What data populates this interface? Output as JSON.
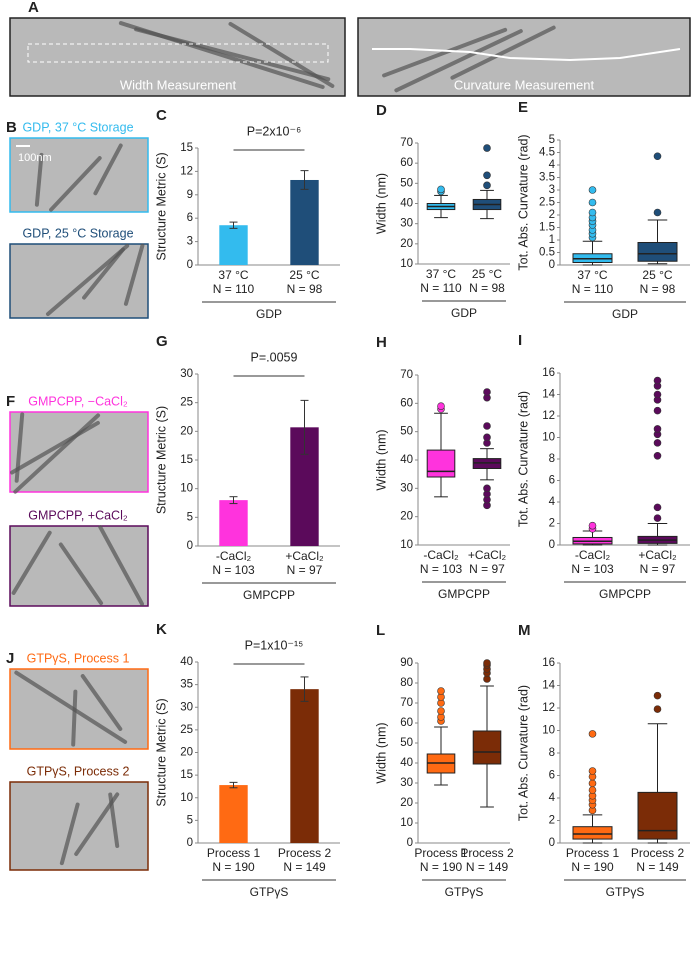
{
  "images": [
    {
      "label": "A",
      "captions": [
        "Width Measurement",
        "Curvature Measurement"
      ]
    },
    {
      "label": "B",
      "captions": [
        "GDP, 37 °C Storage",
        "GDP,  25 °C Storage"
      ],
      "scale_label": "100nm"
    },
    {
      "label": "F",
      "captions": [
        "GMPCPP, −CaCl₂",
        "GMPCPP, +CaCl₂"
      ]
    },
    {
      "label": "J",
      "captions": [
        "GTPγS, Process 1",
        "GTPγS, Process 2"
      ]
    }
  ],
  "chart_data": [
    {
      "type": "bar",
      "label": "C",
      "ylabel": "Structure Metric (S)",
      "categories": [
        "37 °C",
        "25 °C"
      ],
      "n_labels": [
        "N = 110",
        "N = 98"
      ],
      "group_label": "GDP",
      "values": [
        5.1,
        10.9
      ],
      "errors": [
        0.4,
        1.2
      ],
      "colors": [
        "#33bbee",
        "#1f4e79"
      ],
      "annotation": "P=2x10⁻⁶",
      "ylim": [
        0,
        15
      ],
      "yticks": [
        0,
        3,
        6,
        9,
        12,
        15
      ]
    },
    {
      "type": "box",
      "label": "D",
      "ylabel": "Width (nm)",
      "categories": [
        "37 °C",
        "25 °C"
      ],
      "n_labels": [
        "N = 110",
        "N = 98"
      ],
      "group_label": "GDP",
      "colors": [
        "#33bbee",
        "#1f4e79"
      ],
      "ylim": [
        10,
        70
      ],
      "yticks": [
        10,
        20,
        30,
        40,
        50,
        60,
        70
      ],
      "boxes": [
        {
          "whislo": 33,
          "q1": 37,
          "med": 38.5,
          "q3": 40,
          "whishi": 44,
          "fliers": [
            46,
            47
          ]
        },
        {
          "whislo": 32.5,
          "q1": 37,
          "med": 39.5,
          "q3": 42,
          "whishi": 46.5,
          "fliers": [
            49,
            54,
            67.5
          ]
        }
      ]
    },
    {
      "type": "box",
      "label": "E",
      "ylabel": "Tot. Abs. Curvature (rad)",
      "categories": [
        "37 °C",
        "25 °C"
      ],
      "n_labels": [
        "N = 110",
        "N = 98"
      ],
      "group_label": "GDP",
      "colors": [
        "#33bbee",
        "#1f4e79"
      ],
      "ylim": [
        0,
        5
      ],
      "yticks": [
        0,
        0.5,
        1,
        1.5,
        2,
        2.5,
        3,
        3.5,
        4,
        4.5,
        5
      ],
      "boxes": [
        {
          "whislo": 0,
          "q1": 0.1,
          "med": 0.25,
          "q3": 0.45,
          "whishi": 0.95,
          "fliers": [
            1.1,
            1.25,
            1.4,
            1.6,
            1.75,
            1.9,
            2.1,
            2.5,
            3.0
          ]
        },
        {
          "whislo": 0.05,
          "q1": 0.15,
          "med": 0.45,
          "q3": 0.9,
          "whishi": 1.8,
          "fliers": [
            2.1,
            4.35
          ]
        }
      ]
    },
    {
      "type": "bar",
      "label": "G",
      "ylabel": "Structure Metric (S)",
      "categories": [
        "-CaCl₂",
        "+CaCl₂"
      ],
      "n_labels": [
        "N = 103",
        "N = 97"
      ],
      "group_label": "GMPCPP",
      "values": [
        8,
        20.7
      ],
      "errors": [
        0.6,
        4.7
      ],
      "colors": [
        "#ff33dd",
        "#5b0a5b"
      ],
      "annotation": "P=.0059",
      "ylim": [
        0,
        30
      ],
      "yticks": [
        0,
        5,
        10,
        15,
        20,
        25,
        30
      ]
    },
    {
      "type": "box",
      "label": "H",
      "ylabel": "Width (nm)",
      "categories": [
        "-CaCl₂",
        "+CaCl₂"
      ],
      "n_labels": [
        "N = 103",
        "N = 97"
      ],
      "group_label": "GMPCPP",
      "colors": [
        "#ff33dd",
        "#5b0a5b"
      ],
      "ylim": [
        10,
        70
      ],
      "yticks": [
        10,
        20,
        30,
        40,
        50,
        60,
        70
      ],
      "boxes": [
        {
          "whislo": 27,
          "q1": 34,
          "med": 36,
          "q3": 43.5,
          "whishi": 56.5,
          "fliers": [
            58,
            59
          ]
        },
        {
          "whislo": 33,
          "q1": 37,
          "med": 39,
          "q3": 40.5,
          "whishi": 44,
          "fliers": [
            24,
            26,
            28,
            30,
            46,
            48,
            52,
            62,
            64
          ]
        }
      ]
    },
    {
      "type": "box",
      "label": "I",
      "ylabel": "Tot. Abs. Curvature (rad)",
      "categories": [
        "-CaCl₂",
        "+CaCl₂"
      ],
      "n_labels": [
        "N = 103",
        "N = 97"
      ],
      "group_label": "GMPCPP",
      "colors": [
        "#ff33dd",
        "#5b0a5b"
      ],
      "ylim": [
        0,
        16
      ],
      "yticks": [
        0,
        2,
        4,
        6,
        8,
        10,
        12,
        14,
        16
      ],
      "boxes": [
        {
          "whislo": 0,
          "q1": 0.1,
          "med": 0.35,
          "q3": 0.7,
          "whishi": 1.3,
          "fliers": [
            1.5,
            1.8
          ]
        },
        {
          "whislo": 0,
          "q1": 0.15,
          "med": 0.45,
          "q3": 0.8,
          "whishi": 2.0,
          "fliers": [
            2.5,
            3.5,
            8.3,
            9.5,
            10.3,
            10.8,
            12.5,
            13.5,
            14,
            14.8,
            15.3
          ]
        }
      ]
    },
    {
      "type": "bar",
      "label": "K",
      "ylabel": "Structure Metric (S)",
      "categories": [
        "Process 1",
        "Process 2"
      ],
      "n_labels": [
        "N = 190",
        "N = 149"
      ],
      "group_label": "GTPγS",
      "values": [
        12.8,
        34
      ],
      "errors": [
        0.6,
        2.7
      ],
      "colors": [
        "#ff6a13",
        "#7b2c07"
      ],
      "annotation": "P=1x10⁻¹⁵",
      "ylim": [
        0,
        40
      ],
      "yticks": [
        0,
        5,
        10,
        15,
        20,
        25,
        30,
        35,
        40
      ]
    },
    {
      "type": "box",
      "label": "L",
      "ylabel": "Width (nm)",
      "categories": [
        "Process 1",
        "Process 2"
      ],
      "n_labels": [
        "N = 190",
        "N = 149"
      ],
      "group_label": "GTPγS",
      "colors": [
        "#ff6a13",
        "#7b2c07"
      ],
      "ylim": [
        0,
        90
      ],
      "yticks": [
        0,
        10,
        20,
        30,
        40,
        50,
        60,
        70,
        80,
        90
      ],
      "boxes": [
        {
          "whislo": 29,
          "q1": 35,
          "med": 40,
          "q3": 44.5,
          "whishi": 58,
          "fliers": [
            61,
            63,
            66,
            70,
            73,
            76
          ]
        },
        {
          "whislo": 18,
          "q1": 39.5,
          "med": 45.5,
          "q3": 56,
          "whishi": 78.5,
          "fliers": [
            82,
            85,
            87,
            89,
            90
          ]
        }
      ]
    },
    {
      "type": "box",
      "label": "M",
      "ylabel": "Tot. Abs. Curvature (rad)",
      "categories": [
        "Process 1",
        "Process 2"
      ],
      "n_labels": [
        "N = 190",
        "N = 149"
      ],
      "group_label": "GTPγS",
      "colors": [
        "#ff6a13",
        "#7b2c07"
      ],
      "ylim": [
        0,
        16
      ],
      "yticks": [
        0,
        2,
        4,
        6,
        8,
        10,
        12,
        14,
        16
      ],
      "boxes": [
        {
          "whislo": 0,
          "q1": 0.35,
          "med": 0.8,
          "q3": 1.45,
          "whishi": 2.5,
          "fliers": [
            2.9,
            3.4,
            3.8,
            4.2,
            4.7,
            5.3,
            5.9,
            6.4,
            9.7
          ]
        },
        {
          "whislo": 0,
          "q1": 0.35,
          "med": 1.1,
          "q3": 4.5,
          "whishi": 10.6,
          "fliers": [
            11.9,
            13.1
          ]
        }
      ]
    }
  ]
}
